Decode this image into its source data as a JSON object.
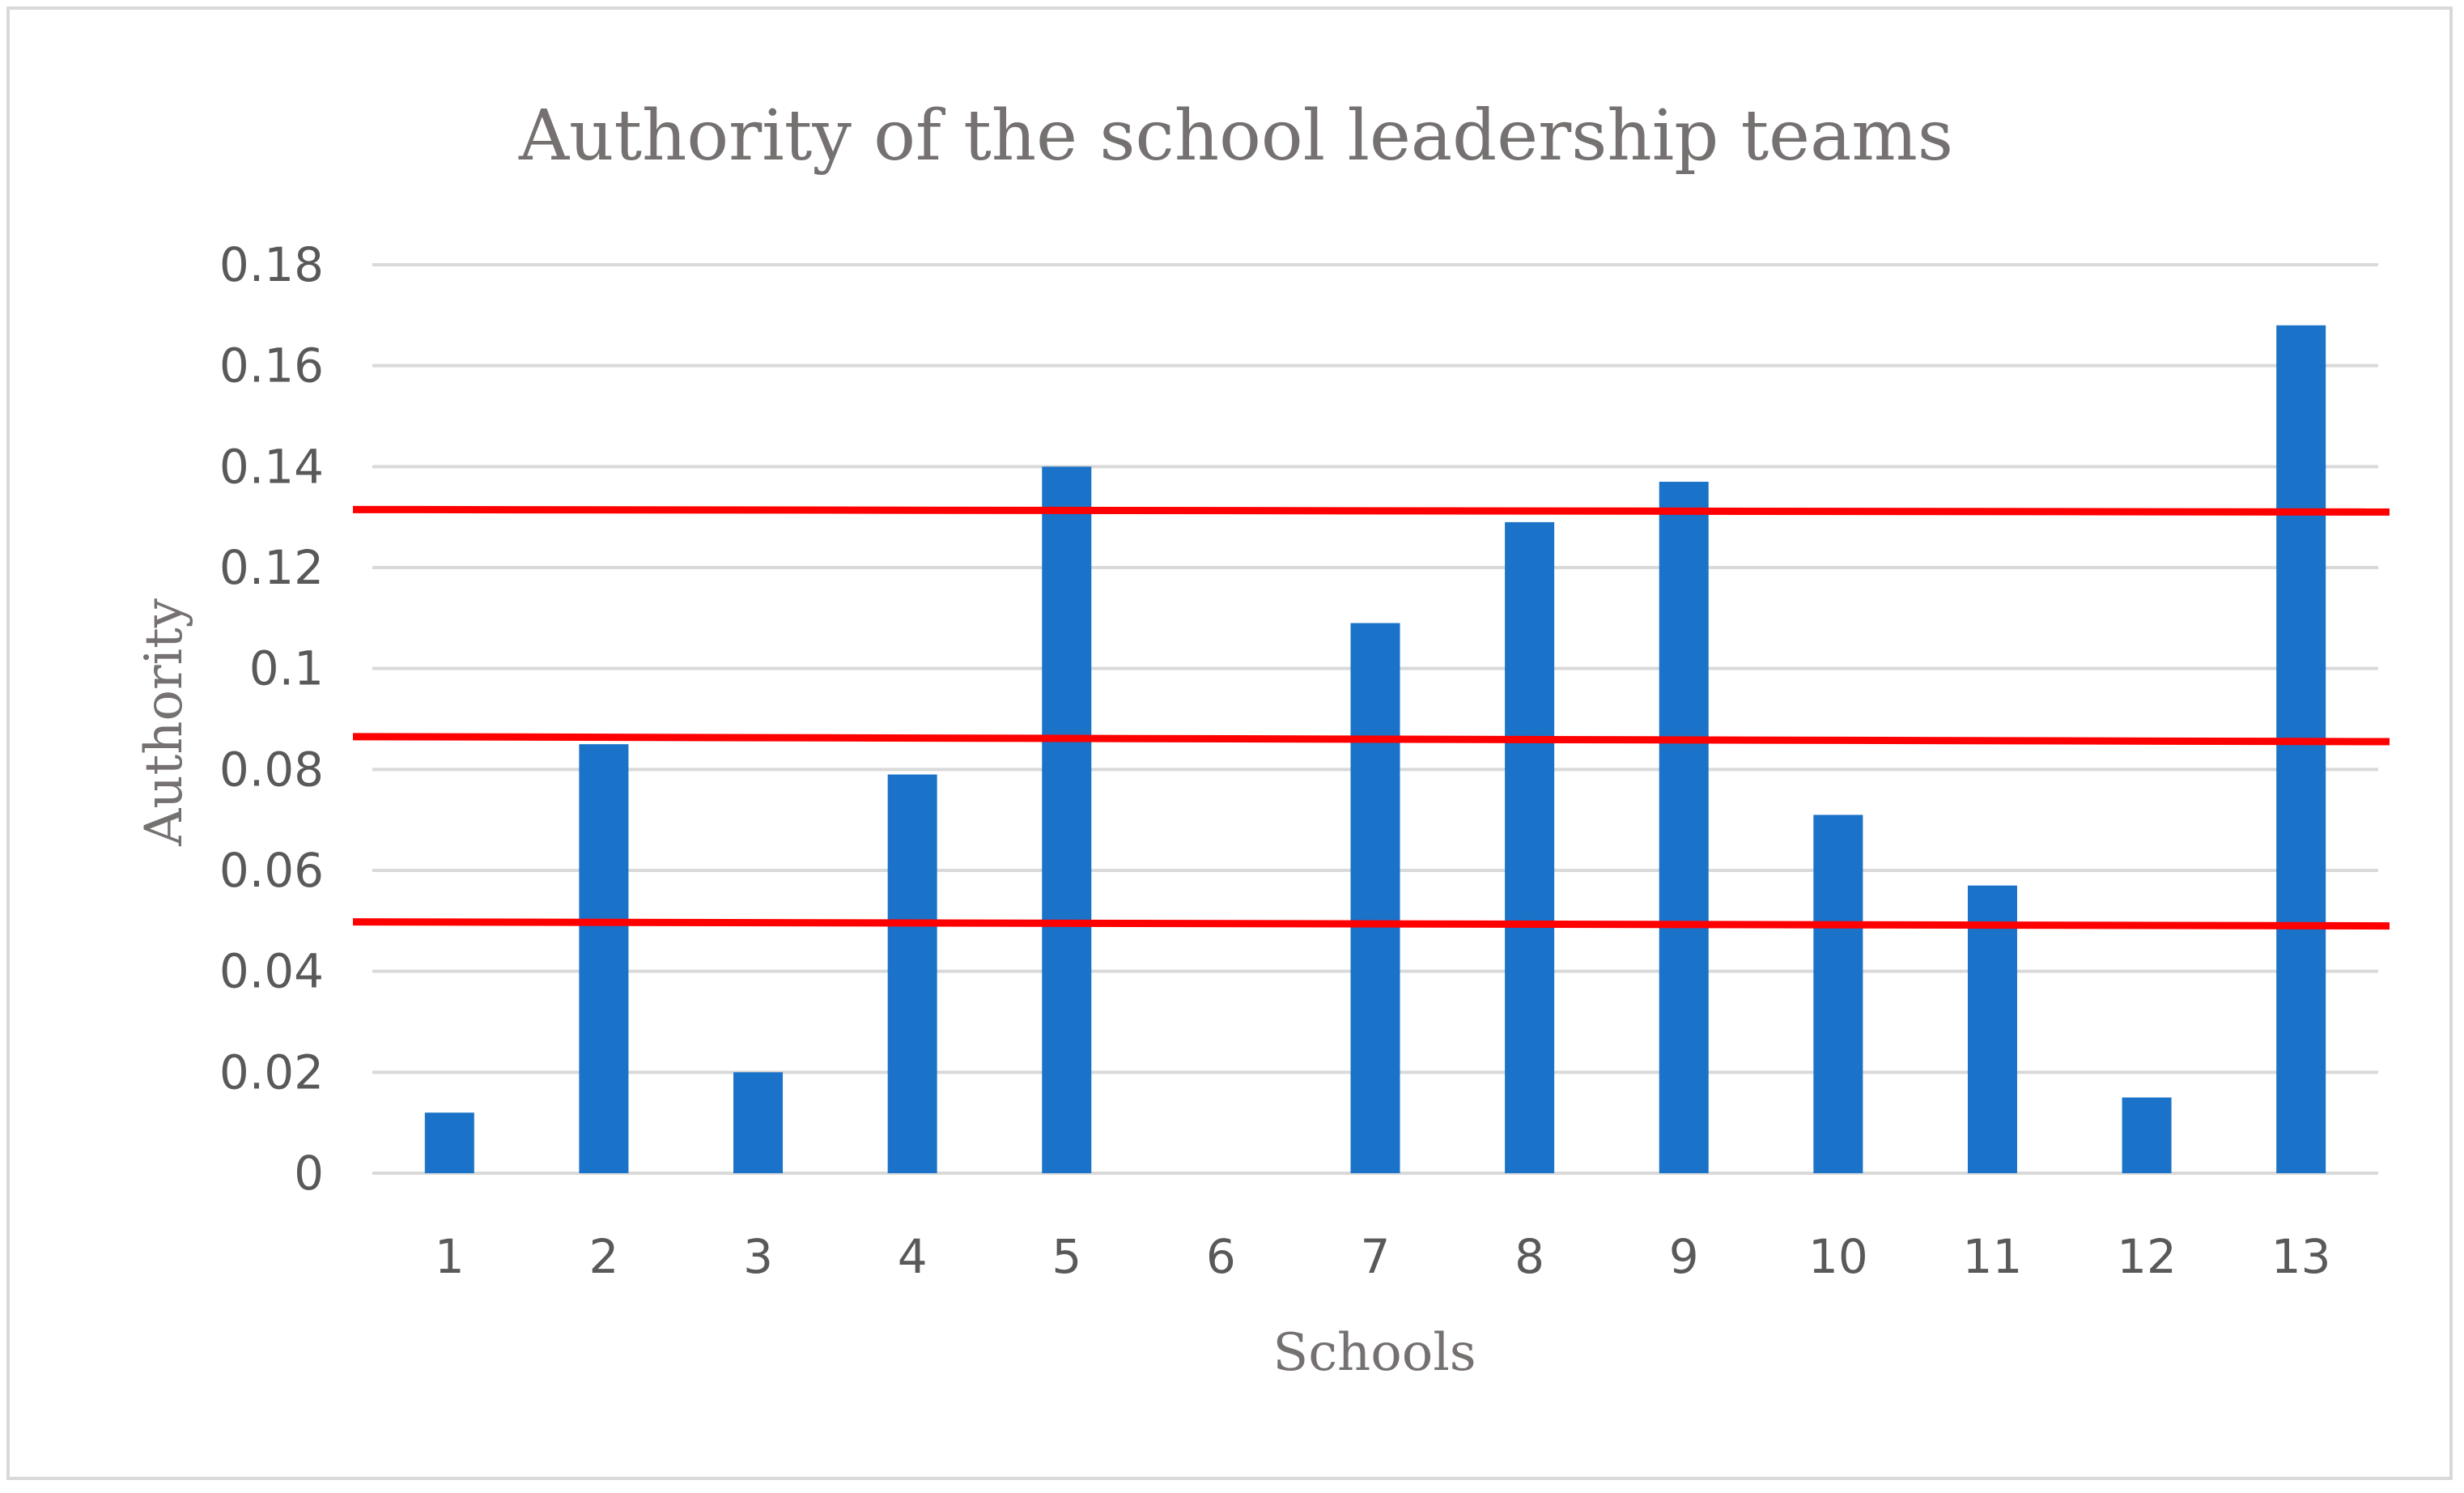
{
  "chart_data": {
    "type": "bar",
    "title": "Authority of the school leadership teams",
    "xlabel": "Schools",
    "ylabel": "Authority",
    "categories": [
      "1",
      "2",
      "3",
      "4",
      "5",
      "6",
      "7",
      "8",
      "9",
      "10",
      "11",
      "12",
      "13"
    ],
    "values": [
      0.012,
      0.085,
      0.02,
      0.079,
      0.14,
      0,
      0.109,
      0.129,
      0.137,
      0.071,
      0.057,
      0.015,
      0.168
    ],
    "ylim": [
      0,
      0.18
    ],
    "yticks": [
      "0",
      "0.02",
      "0.04",
      "0.06",
      "0.08",
      "0.1",
      "0.12",
      "0.14",
      "0.16",
      "0.18"
    ],
    "ytick_values": [
      0,
      0.02,
      0.04,
      0.06,
      0.08,
      0.1,
      0.12,
      0.14,
      0.16,
      0.18
    ],
    "grid": true,
    "legend": "none",
    "reference_lines": [
      {
        "y_start": 0.1315,
        "y_end": 0.131
      },
      {
        "y_start": 0.0865,
        "y_end": 0.0855
      },
      {
        "y_start": 0.0498,
        "y_end": 0.049
      }
    ],
    "colors": {
      "bar": "#1a73c8",
      "reference_line": "#ff0000",
      "grid": "#d9d9d9",
      "title": "#767171",
      "tick": "#595959"
    }
  }
}
